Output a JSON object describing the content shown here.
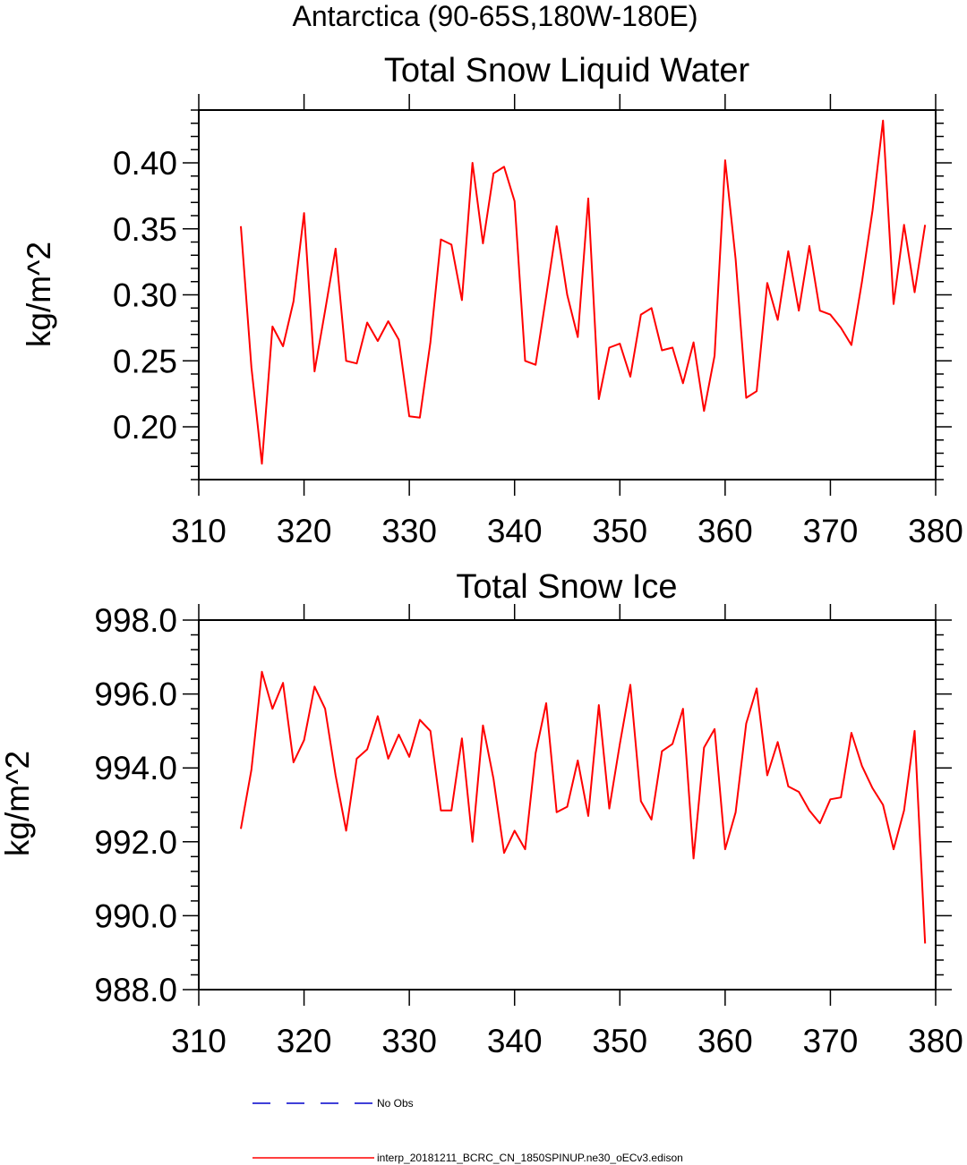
{
  "main_title": "Antarctica (90-65S,180W-180E)",
  "colors": {
    "model": "#ff0000",
    "obs": "#0000cc",
    "axis": "#000000"
  },
  "legend": [
    {
      "label": "No Obs",
      "color": "#0000cc",
      "style": "dashed"
    },
    {
      "label": "interp_20181211_BCRC_CN_1850SPINUP.ne30_oECv3.edison",
      "color": "#ff0000",
      "style": "solid"
    }
  ],
  "chart_data": [
    {
      "type": "line",
      "title": "Total Snow Liquid Water",
      "xlabel": "",
      "ylabel": "kg/m^2",
      "xlim": [
        310,
        380
      ],
      "ylim": [
        0.16,
        0.44
      ],
      "xticks": [
        "310",
        "320",
        "330",
        "340",
        "350",
        "360",
        "370",
        "380"
      ],
      "yticks": [
        "0.20",
        "0.25",
        "0.30",
        "0.35",
        "0.40"
      ],
      "x": [
        314,
        315,
        316,
        317,
        318,
        319,
        320,
        321,
        322,
        323,
        324,
        325,
        326,
        327,
        328,
        329,
        330,
        331,
        332,
        333,
        334,
        335,
        336,
        337,
        338,
        339,
        340,
        341,
        342,
        343,
        344,
        345,
        346,
        347,
        348,
        349,
        350,
        351,
        352,
        353,
        354,
        355,
        356,
        357,
        358,
        359,
        360,
        361,
        362,
        363,
        364,
        365,
        366,
        367,
        368,
        369,
        370,
        371,
        372,
        373,
        374,
        375,
        376,
        377,
        378,
        379
      ],
      "series": [
        {
          "name": "interp_20181211_BCRC_CN_1850SPINUP.ne30_oECv3.edison",
          "values": [
            0.352,
            0.245,
            0.172,
            0.276,
            0.261,
            0.295,
            0.362,
            0.242,
            0.288,
            0.335,
            0.25,
            0.248,
            0.279,
            0.265,
            0.28,
            0.266,
            0.208,
            0.207,
            0.264,
            0.342,
            0.338,
            0.296,
            0.4,
            0.339,
            0.392,
            0.397,
            0.371,
            0.25,
            0.247,
            0.299,
            0.352,
            0.3,
            0.268,
            0.373,
            0.221,
            0.26,
            0.263,
            0.238,
            0.285,
            0.29,
            0.258,
            0.26,
            0.233,
            0.264,
            0.212,
            0.254,
            0.402,
            0.327,
            0.222,
            0.227,
            0.309,
            0.281,
            0.333,
            0.288,
            0.337,
            0.288,
            0.285,
            0.275,
            0.262,
            0.31,
            0.364,
            0.432,
            0.293,
            0.353,
            0.302,
            0.353
          ]
        }
      ]
    },
    {
      "type": "line",
      "title": "Total Snow Ice",
      "xlabel": "",
      "ylabel": "kg/m^2",
      "xlim": [
        310,
        380
      ],
      "ylim": [
        988.0,
        998.0
      ],
      "xticks": [
        "310",
        "320",
        "330",
        "340",
        "350",
        "360",
        "370",
        "380"
      ],
      "yticks": [
        "988.0",
        "990.0",
        "992.0",
        "994.0",
        "996.0",
        "998.0"
      ],
      "x": [
        314,
        315,
        316,
        317,
        318,
        319,
        320,
        321,
        322,
        323,
        324,
        325,
        326,
        327,
        328,
        329,
        330,
        331,
        332,
        333,
        334,
        335,
        336,
        337,
        338,
        339,
        340,
        341,
        342,
        343,
        344,
        345,
        346,
        347,
        348,
        349,
        350,
        351,
        352,
        353,
        354,
        355,
        356,
        357,
        358,
        359,
        360,
        361,
        362,
        363,
        364,
        365,
        366,
        367,
        368,
        369,
        370,
        371,
        372,
        373,
        374,
        375,
        376,
        377,
        378,
        379
      ],
      "series": [
        {
          "name": "interp_20181211_BCRC_CN_1850SPINUP.ne30_oECv3.edison",
          "values": [
            992.35,
            993.95,
            996.6,
            995.6,
            996.3,
            994.15,
            994.75,
            996.2,
            995.6,
            993.8,
            992.3,
            994.25,
            994.5,
            995.4,
            994.25,
            994.9,
            994.3,
            995.3,
            995.0,
            992.85,
            992.85,
            994.8,
            992.0,
            995.15,
            993.7,
            991.7,
            992.3,
            991.8,
            994.4,
            995.75,
            992.8,
            992.95,
            994.2,
            992.7,
            995.7,
            992.9,
            994.65,
            996.25,
            993.1,
            992.6,
            994.45,
            994.65,
            995.6,
            991.55,
            994.55,
            995.05,
            991.8,
            992.8,
            995.2,
            996.15,
            993.8,
            994.7,
            993.5,
            993.35,
            992.85,
            992.5,
            993.15,
            993.2,
            994.95,
            994.05,
            993.45,
            993.0,
            991.8,
            992.85,
            995.0,
            989.25
          ]
        }
      ]
    }
  ]
}
